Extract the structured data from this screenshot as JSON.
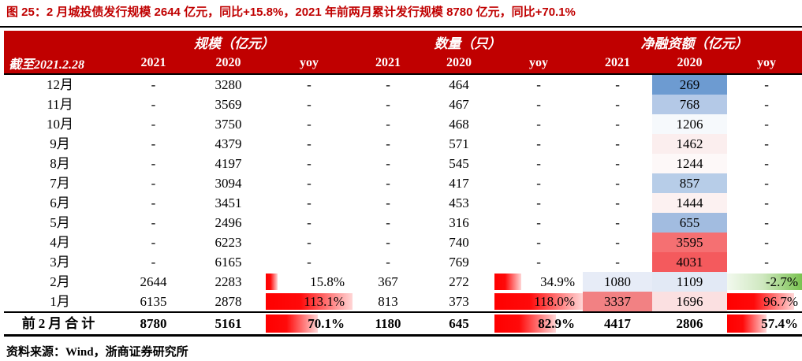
{
  "title": "图 25：2 月城投债发行规模 2644 亿元，同比+15.8%，2021 年前两月累计发行规模 8780 亿元，同比+70.1%",
  "source": "资料来源：Wind，浙商证券研究所",
  "colors": {
    "accent_red": "#c00000",
    "header_bg": "#c00000",
    "header_text": "#ffffff",
    "bar_red": "#ff0000",
    "bar_green": "#71bf45",
    "scale_blue_max": "#6d9bd1",
    "scale_red_max": "#f45a5d"
  },
  "table": {
    "corner_label": "截至2021.2.28",
    "groups": [
      {
        "label": "规模（亿元）"
      },
      {
        "label": "数量（只）"
      },
      {
        "label": "净融资额（亿元）"
      }
    ],
    "sub_headers": [
      "2021",
      "2020",
      "yoy",
      "2021",
      "2020",
      "yoy",
      "2021",
      "2020",
      "yoy"
    ],
    "rows": [
      {
        "label": "12月",
        "cells": [
          "-",
          "3280",
          "-",
          "-",
          "464",
          "-",
          "-",
          {
            "v": "269",
            "bg": "#6d9bd1"
          },
          "-"
        ]
      },
      {
        "label": "11月",
        "cells": [
          "-",
          "3569",
          "-",
          "-",
          "467",
          "-",
          "-",
          {
            "v": "768",
            "bg": "#b4c9e7"
          },
          "-"
        ]
      },
      {
        "label": "10月",
        "cells": [
          "-",
          "3750",
          "-",
          "-",
          "468",
          "-",
          "-",
          {
            "v": "1206",
            "bg": "#f6f9fc"
          },
          "-"
        ]
      },
      {
        "label": "9月",
        "cells": [
          "-",
          "4379",
          "-",
          "-",
          "571",
          "-",
          "-",
          {
            "v": "1462",
            "bg": "#fbeeee"
          },
          "-"
        ]
      },
      {
        "label": "8月",
        "cells": [
          "-",
          "4197",
          "-",
          "-",
          "545",
          "-",
          "-",
          {
            "v": "1244",
            "bg": "#fdf8f8"
          },
          "-"
        ]
      },
      {
        "label": "7月",
        "cells": [
          "-",
          "3094",
          "-",
          "-",
          "417",
          "-",
          "-",
          {
            "v": "857",
            "bg": "#b7cde8"
          },
          "-"
        ]
      },
      {
        "label": "6月",
        "cells": [
          "-",
          "3451",
          "-",
          "-",
          "453",
          "-",
          "-",
          {
            "v": "1444",
            "bg": "#fcf1f1"
          },
          "-"
        ]
      },
      {
        "label": "5月",
        "cells": [
          "-",
          "2496",
          "-",
          "-",
          "316",
          "-",
          "-",
          {
            "v": "655",
            "bg": "#a2bce0"
          },
          "-"
        ]
      },
      {
        "label": "4月",
        "cells": [
          "-",
          "6223",
          "-",
          "-",
          "740",
          "-",
          "-",
          {
            "v": "3595",
            "bg": "#f57072"
          },
          "-"
        ]
      },
      {
        "label": "3月",
        "cells": [
          "-",
          "6165",
          "-",
          "-",
          "769",
          "-",
          "-",
          {
            "v": "4031",
            "bg": "#f45a5d"
          },
          "-"
        ]
      },
      {
        "label": "2月",
        "cells": [
          "2644",
          "2283",
          {
            "v": "15.8%",
            "bar": 14,
            "barc": "red"
          },
          "367",
          "272",
          {
            "v": "34.9%",
            "bar": 30,
            "barc": "red"
          },
          {
            "v": "1080",
            "bg": "#e7ecf7"
          },
          {
            "v": "1109",
            "bg": "#e2e9f5"
          },
          {
            "v": "-2.7%",
            "bar": 100,
            "barc": "green"
          }
        ]
      },
      {
        "label": "1月",
        "cells": [
          "6135",
          "2878",
          {
            "v": "113.1%",
            "bar": 100,
            "barc": "red"
          },
          "813",
          "373",
          {
            "v": "118.0%",
            "bar": 100,
            "barc": "red"
          },
          {
            "v": "3337",
            "bg": "#f28183"
          },
          {
            "v": "1696",
            "bg": "#fbe0e1"
          },
          {
            "v": "96.7%",
            "bar": 85,
            "barc": "red"
          }
        ]
      }
    ],
    "total_row": {
      "label": "前2月合计",
      "cells": [
        "8780",
        "5161",
        {
          "v": "70.1%",
          "bar": 60,
          "barc": "red"
        },
        "1180",
        "645",
        {
          "v": "82.9%",
          "bar": 70,
          "barc": "red"
        },
        "4417",
        "2806",
        {
          "v": "57.4%",
          "bar": 50,
          "barc": "red"
        }
      ]
    }
  },
  "chart_data": {
    "type": "table",
    "title": "图 25：2 月城投债发行规模 2644 亿元，同比+15.8%，2021 年前两月累计发行规模 8780 亿元，同比+70.1%",
    "column_groups": [
      "规模（亿元）",
      "数量（只）",
      "净融资额（亿元）"
    ],
    "columns": [
      "截至2021.2.28",
      "规模2021",
      "规模2020",
      "规模yoy",
      "数量2021",
      "数量2020",
      "数量yoy",
      "净融资额2021",
      "净融资额2020",
      "净融资额yoy"
    ],
    "rows": [
      [
        "12月",
        null,
        3280,
        null,
        null,
        464,
        null,
        null,
        269,
        null
      ],
      [
        "11月",
        null,
        3569,
        null,
        null,
        467,
        null,
        null,
        768,
        null
      ],
      [
        "10月",
        null,
        3750,
        null,
        null,
        468,
        null,
        null,
        1206,
        null
      ],
      [
        "9月",
        null,
        4379,
        null,
        null,
        571,
        null,
        null,
        1462,
        null
      ],
      [
        "8月",
        null,
        4197,
        null,
        null,
        545,
        null,
        null,
        1244,
        null
      ],
      [
        "7月",
        null,
        3094,
        null,
        null,
        417,
        null,
        null,
        857,
        null
      ],
      [
        "6月",
        null,
        3451,
        null,
        null,
        453,
        null,
        null,
        1444,
        null
      ],
      [
        "5月",
        null,
        2496,
        null,
        null,
        316,
        null,
        null,
        655,
        null
      ],
      [
        "4月",
        null,
        6223,
        null,
        null,
        740,
        null,
        null,
        3595,
        null
      ],
      [
        "3月",
        null,
        6165,
        null,
        null,
        769,
        null,
        null,
        4031,
        null
      ],
      [
        "2月",
        2644,
        2283,
        "15.8%",
        367,
        272,
        "34.9%",
        1080,
        1109,
        "-2.7%"
      ],
      [
        "1月",
        6135,
        2878,
        "113.1%",
        813,
        373,
        "118.0%",
        3337,
        1696,
        "96.7%"
      ],
      [
        "前2月合计",
        8780,
        5161,
        "70.1%",
        1180,
        645,
        "82.9%",
        4417,
        2806,
        "57.4%"
      ]
    ],
    "notes": "净融资额2020列带红蓝色阶条件格式；yoy列带红色渐变数据条，-2.7%为绿色渐变"
  }
}
